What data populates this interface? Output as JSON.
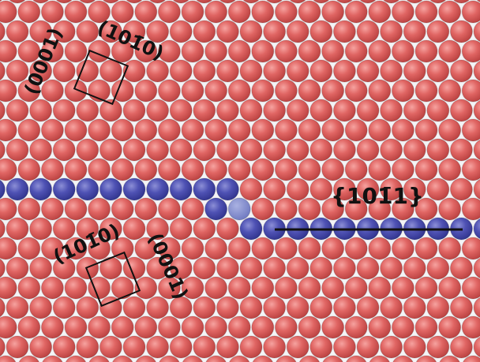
{
  "labels": [
    "(0001)",
    "(101̄0)",
    "(101̄0)",
    "(0001)",
    "{101̄1}"
  ]
}
